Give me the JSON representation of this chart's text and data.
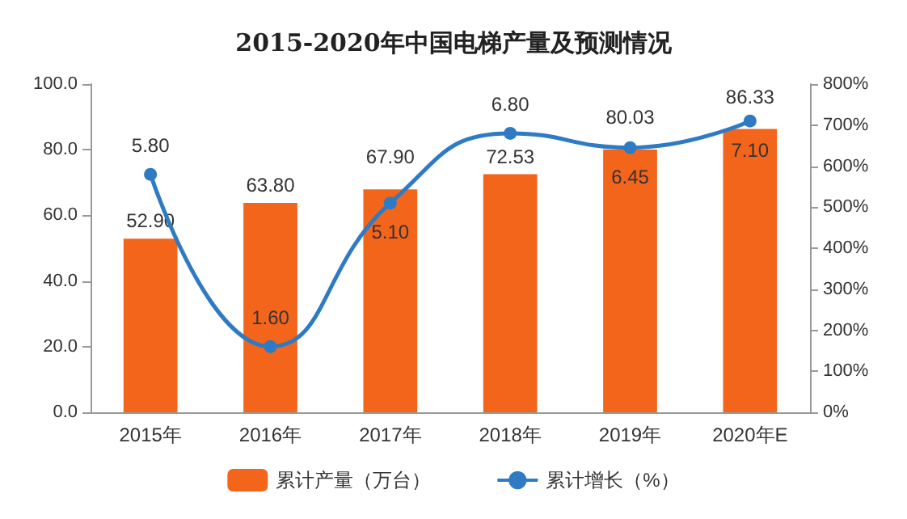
{
  "chart_data": {
    "type": "bar",
    "title": "2015-2020年中国电梯产量及预测情况",
    "categories": [
      "2015年",
      "2016年",
      "2017年",
      "2018年",
      "2019年",
      "2020年E"
    ],
    "series": [
      {
        "name": "累计产量（万台）",
        "color": "#f4651c",
        "values": [
          52.9,
          63.8,
          67.9,
          72.53,
          80.03,
          86.33
        ],
        "value_labels": [
          "52.90",
          "63.80",
          "67.90",
          "72.53",
          "80.03",
          "86.33"
        ]
      },
      {
        "name": "累计增长（%）",
        "type": "line",
        "axis": "y2",
        "color": "#2e7bc4",
        "values": [
          5.8,
          1.6,
          5.1,
          6.8,
          6.45,
          7.1
        ],
        "value_labels": [
          "5.80",
          "1.60",
          "5.10",
          "6.80",
          "6.45",
          "7.10"
        ]
      }
    ],
    "ylim": [
      0,
      100
    ],
    "yticks": [
      {
        "value": 0,
        "label": "0.0"
      },
      {
        "value": 20,
        "label": "20.0"
      },
      {
        "value": 40,
        "label": "40.0"
      },
      {
        "value": 60,
        "label": "60.0"
      },
      {
        "value": 80,
        "label": "80.0"
      },
      {
        "value": 100,
        "label": "100.0"
      }
    ],
    "y2lim": [
      0,
      8
    ],
    "y2ticks": [
      {
        "value": 0,
        "label": "0%"
      },
      {
        "value": 1,
        "label": "100%"
      },
      {
        "value": 2,
        "label": "200%"
      },
      {
        "value": 3,
        "label": "300%"
      },
      {
        "value": 4,
        "label": "400%"
      },
      {
        "value": 5,
        "label": "500%"
      },
      {
        "value": 6,
        "label": "600%"
      },
      {
        "value": 7,
        "label": "700%"
      },
      {
        "value": 8,
        "label": "800%"
      }
    ],
    "grid": false,
    "legend": "bottom",
    "marker": "circle",
    "line_style": "solid"
  }
}
